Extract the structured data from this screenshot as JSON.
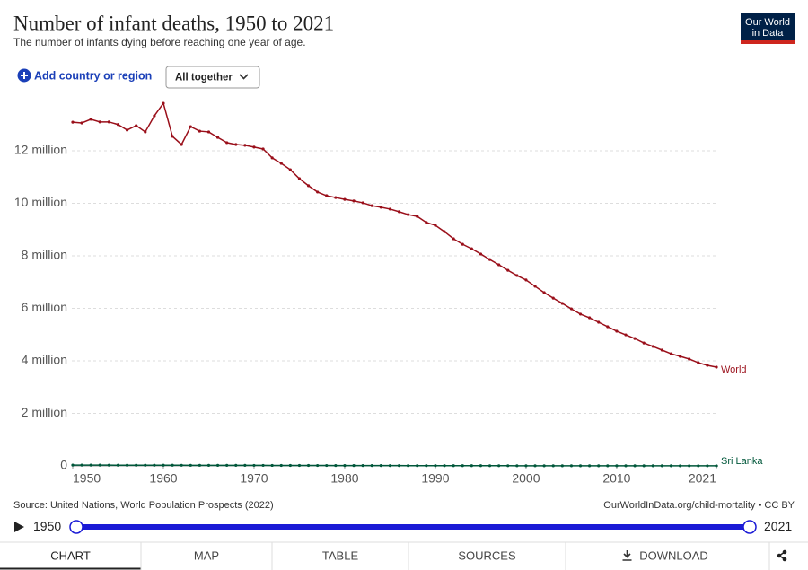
{
  "header": {
    "title": "Number of infant deaths, 1950 to 2021",
    "subtitle": "The number of infants dying before reaching one year of age.",
    "logo_line1": "Our World",
    "logo_line2": "in Data"
  },
  "controls": {
    "add": "Add country or region",
    "dropdown": "All together"
  },
  "chart_data": {
    "type": "line",
    "x": [
      1950,
      1951,
      1952,
      1953,
      1954,
      1955,
      1956,
      1957,
      1958,
      1959,
      1960,
      1961,
      1962,
      1963,
      1964,
      1965,
      1966,
      1967,
      1968,
      1969,
      1970,
      1971,
      1972,
      1973,
      1974,
      1975,
      1976,
      1977,
      1978,
      1979,
      1980,
      1981,
      1982,
      1983,
      1984,
      1985,
      1986,
      1987,
      1988,
      1989,
      1990,
      1991,
      1992,
      1993,
      1994,
      1995,
      1996,
      1997,
      1998,
      1999,
      2000,
      2001,
      2002,
      2003,
      2004,
      2005,
      2006,
      2007,
      2008,
      2009,
      2010,
      2011,
      2012,
      2013,
      2014,
      2015,
      2016,
      2017,
      2018,
      2019,
      2020,
      2021
    ],
    "series": [
      {
        "name": "World",
        "color": "#9a0f1a",
        "values": [
          13090000,
          13060000,
          13200000,
          13100000,
          13100000,
          13000000,
          12790000,
          12960000,
          12720000,
          13330000,
          13810000,
          12550000,
          12240000,
          12920000,
          12750000,
          12720000,
          12510000,
          12310000,
          12240000,
          12210000,
          12140000,
          12070000,
          11730000,
          11520000,
          11280000,
          10940000,
          10670000,
          10430000,
          10290000,
          10220000,
          10150000,
          10090000,
          10020000,
          9910000,
          9850000,
          9780000,
          9680000,
          9570000,
          9500000,
          9270000,
          9160000,
          8920000,
          8650000,
          8440000,
          8270000,
          8070000,
          7860000,
          7660000,
          7450000,
          7250000,
          7080000,
          6840000,
          6600000,
          6390000,
          6190000,
          5980000,
          5780000,
          5640000,
          5470000,
          5300000,
          5130000,
          4990000,
          4850000,
          4680000,
          4550000,
          4410000,
          4270000,
          4170000,
          4070000,
          3930000,
          3830000,
          3760000
        ]
      },
      {
        "name": "Sri Lanka",
        "color": "#00573a",
        "values": [
          32000,
          31000,
          30000,
          29000,
          28000,
          27500,
          27000,
          26500,
          26000,
          25500,
          25000,
          24500,
          24000,
          23500,
          23000,
          22500,
          22000,
          21500,
          21000,
          20500,
          20000,
          19500,
          19000,
          18000,
          17500,
          17000,
          16000,
          15500,
          15000,
          14500,
          14000,
          13500,
          13000,
          12500,
          12000,
          11500,
          11000,
          10500,
          10000,
          9500,
          9000,
          8700,
          8400,
          8100,
          7800,
          7500,
          7200,
          6900,
          6600,
          6300,
          6000,
          5700,
          5400,
          5100,
          4800,
          4600,
          4400,
          4200,
          4000,
          3800,
          3600,
          3500,
          3400,
          3300,
          3200,
          3100,
          3000,
          2900,
          2800,
          2700,
          2600,
          2500
        ]
      }
    ],
    "xlim": [
      1950,
      2021
    ],
    "xticks": [
      1950,
      1960,
      1970,
      1980,
      1990,
      2000,
      2010,
      2021
    ],
    "ylim": [
      0,
      14000000
    ],
    "yticks": [
      0,
      {
        "value": 2000000,
        "label": "2 million"
      },
      {
        "value": 4000000,
        "label": "4 million"
      },
      {
        "value": 6000000,
        "label": "6 million"
      },
      {
        "value": 8000000,
        "label": "8 million"
      },
      {
        "value": 10000000,
        "label": "10 million"
      },
      {
        "value": 12000000,
        "label": "12 million"
      }
    ],
    "grid": true
  },
  "footer": {
    "source": "Source: United Nations, World Population Prospects (2022)",
    "url": "OurWorldInData.org/child-mortality • CC BY"
  },
  "timeline": {
    "start": "1950",
    "end": "2021"
  },
  "tabs": [
    "CHART",
    "MAP",
    "TABLE",
    "SOURCES",
    "DOWNLOAD"
  ]
}
